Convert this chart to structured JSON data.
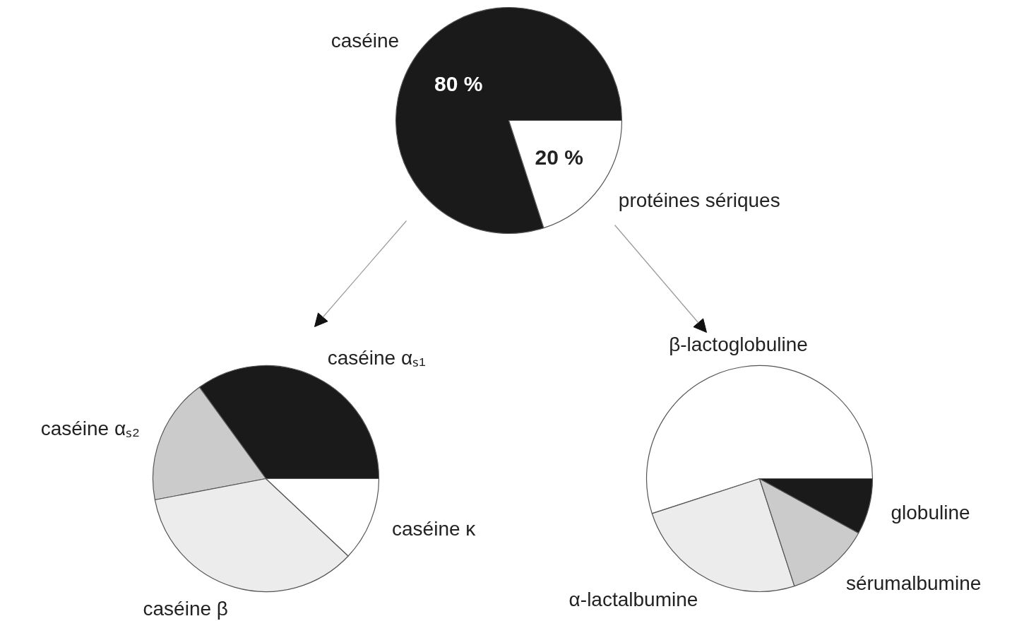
{
  "chart_data": [
    {
      "type": "pie",
      "categories": [
        "caséine",
        "protéines sériques"
      ],
      "values": [
        80,
        20
      ],
      "colors": [
        "#1a1a1a",
        "#ffffff"
      ],
      "value_labels": [
        "80 %",
        "20 %"
      ]
    },
    {
      "type": "pie",
      "categories": [
        "caséine αₛ₁",
        "caséine αₛ₂",
        "caséine β",
        "caséine κ"
      ],
      "values": [
        35,
        18,
        35,
        12
      ],
      "colors": [
        "#1a1a1a",
        "#cbcbcb",
        "#ececec",
        "#ffffff"
      ]
    },
    {
      "type": "pie",
      "categories": [
        "β-lactoglobuline",
        "α-lactalbumine",
        "sérumalbumine",
        "globuline"
      ],
      "values": [
        55,
        25,
        12,
        8
      ],
      "colors": [
        "#ffffff",
        "#ececec",
        "#cbcbcb",
        "#1a1a1a"
      ]
    }
  ]
}
